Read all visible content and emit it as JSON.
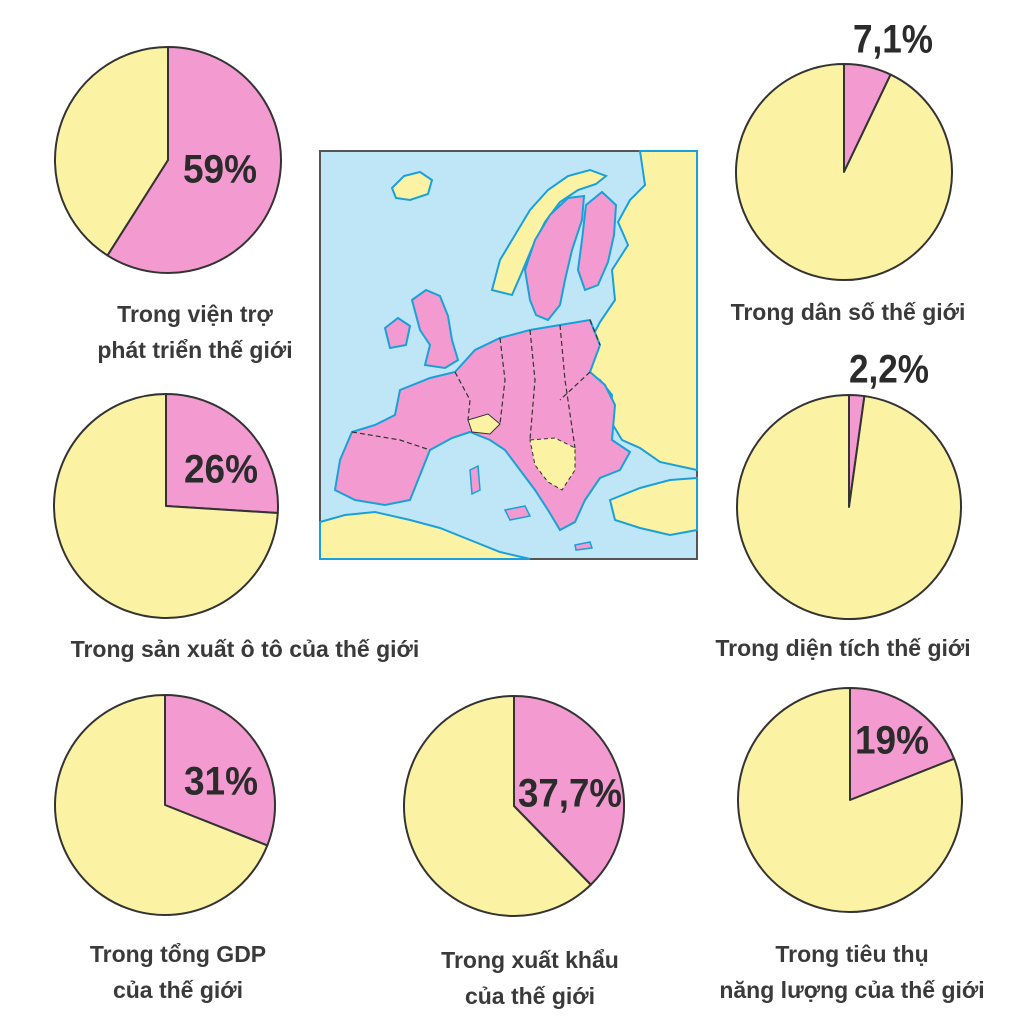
{
  "colors": {
    "eu": "#f39bd0",
    "rest": "#fbf3a3",
    "outline": "#333333",
    "sea": "#bfe6f6",
    "coast": "#1aa0d8",
    "border": "#333333"
  },
  "map": {
    "icon": "europe-map"
  },
  "chart_data": [
    {
      "type": "pie",
      "slices": [
        {
          "value": 59,
          "color": "#f39bd0"
        },
        {
          "value": 41,
          "color": "#fbf3a3"
        }
      ],
      "value_label": "59%",
      "caption": [
        "Trong viện trợ",
        "phát triển thế giới"
      ]
    },
    {
      "type": "pie",
      "slices": [
        {
          "value": 7.1,
          "color": "#f39bd0"
        },
        {
          "value": 92.9,
          "color": "#fbf3a3"
        }
      ],
      "value_label": "7,1%",
      "caption": [
        "Trong dân số thế giới"
      ]
    },
    {
      "type": "pie",
      "slices": [
        {
          "value": 26,
          "color": "#f39bd0"
        },
        {
          "value": 74,
          "color": "#fbf3a3"
        }
      ],
      "value_label": "26%",
      "caption": [
        "Trong sản xuất ô tô của thế giới"
      ]
    },
    {
      "type": "pie",
      "slices": [
        {
          "value": 2.2,
          "color": "#f39bd0"
        },
        {
          "value": 97.8,
          "color": "#fbf3a3"
        }
      ],
      "value_label": "2,2%",
      "caption": [
        "Trong diện tích thế giới"
      ]
    },
    {
      "type": "pie",
      "slices": [
        {
          "value": 31,
          "color": "#f39bd0"
        },
        {
          "value": 69,
          "color": "#fbf3a3"
        }
      ],
      "value_label": "31%",
      "caption": [
        "Trong tổng GDP",
        "của thế giới"
      ]
    },
    {
      "type": "pie",
      "slices": [
        {
          "value": 37.7,
          "color": "#f39bd0"
        },
        {
          "value": 62.3,
          "color": "#fbf3a3"
        }
      ],
      "value_label": "37,7%",
      "caption": [
        "Trong xuất khẩu",
        "của thế giới"
      ]
    },
    {
      "type": "pie",
      "slices": [
        {
          "value": 19,
          "color": "#f39bd0"
        },
        {
          "value": 81,
          "color": "#fbf3a3"
        }
      ],
      "value_label": "19%",
      "caption": [
        "Trong tiêu thụ",
        "năng lượng của thế giới"
      ]
    }
  ]
}
